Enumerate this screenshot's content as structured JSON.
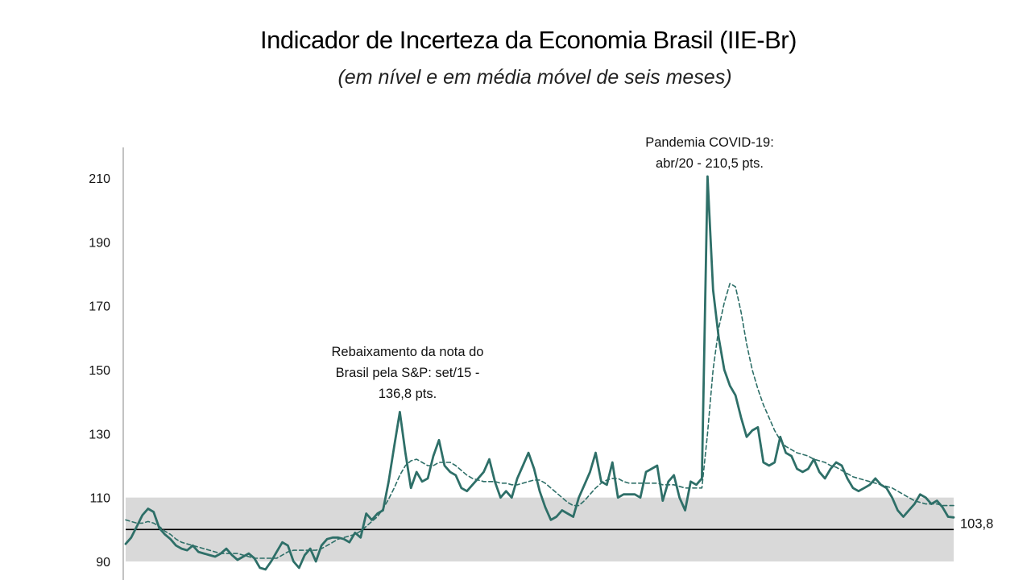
{
  "chart_data": {
    "type": "line",
    "title": "Indicador de Incerteza da Economia Brasil (IIE-Br)",
    "subtitle": "(em nível e em média móvel de seis meses)",
    "ylim": [
      86,
      222
    ],
    "yticks": [
      90,
      110,
      130,
      150,
      170,
      190,
      210
    ],
    "band": [
      90,
      110
    ],
    "reference_line": 100,
    "grid": false,
    "legend": "none",
    "colors": {
      "line": "#2e6f68",
      "moving_average": "#2e6f68",
      "band": "#d9d9d9",
      "reference": "#000000"
    },
    "series": [
      {
        "style": "solid",
        "values": [
          95.5,
          97.5,
          101,
          104.5,
          106.5,
          105.5,
          100.5,
          98.5,
          97,
          95,
          94,
          93.5,
          95,
          93,
          92.5,
          92,
          91.5,
          92.5,
          94,
          92,
          90.5,
          91.5,
          92.5,
          91,
          88,
          87.5,
          90,
          93,
          96,
          95,
          90,
          88,
          92,
          94,
          90,
          95,
          97,
          97.5,
          97.5,
          97,
          96,
          99,
          97.5,
          105,
          103,
          105,
          106,
          115,
          126,
          136.8,
          124,
          113,
          118,
          115,
          116,
          123,
          128,
          120,
          118,
          117,
          113,
          112,
          114,
          116,
          118,
          122,
          115,
          110,
          112,
          110,
          116,
          120,
          124,
          119,
          112,
          107,
          103,
          104,
          106,
          105,
          104,
          110,
          114,
          118,
          124,
          115,
          114,
          121,
          110,
          111,
          111,
          111,
          110,
          118,
          119,
          120,
          109,
          115,
          117,
          110,
          106,
          115,
          114,
          116,
          210.5,
          175,
          160,
          150,
          145,
          142,
          135,
          129,
          131,
          132,
          121,
          120,
          121,
          129,
          124,
          123,
          119,
          118,
          119,
          122,
          118,
          116,
          119,
          121,
          120,
          116,
          113,
          112,
          113,
          114,
          116,
          114,
          113,
          110,
          106,
          104,
          106,
          108,
          111,
          110,
          108,
          109,
          107,
          104,
          103.8
        ]
      },
      {
        "style": "dashed",
        "values": [
          103,
          102.5,
          102,
          102,
          102.5,
          102,
          101,
          99.5,
          98.5,
          97,
          96,
          95.5,
          95,
          94.5,
          94,
          93.5,
          93,
          92.5,
          92.5,
          92.5,
          92.5,
          92,
          91.5,
          91,
          91,
          91,
          91,
          91,
          92,
          93,
          93.5,
          93.5,
          93.5,
          93.5,
          93.5,
          94,
          95,
          96,
          97,
          97.5,
          98,
          98.5,
          99.5,
          101,
          102.5,
          104,
          106.5,
          109.5,
          113,
          117,
          120,
          121.5,
          122,
          121,
          120,
          120,
          121,
          121,
          121,
          120,
          118.5,
          117,
          116,
          115.5,
          115,
          115,
          115,
          114.5,
          114.5,
          114,
          114,
          114.5,
          115,
          115.5,
          115.5,
          114.5,
          113,
          111.5,
          110,
          108.5,
          107.5,
          107.5,
          109,
          111,
          113,
          114.5,
          115.5,
          116,
          116,
          115,
          114.5,
          114.5,
          114.5,
          114.5,
          114.5,
          114.5,
          114,
          114,
          114,
          113.5,
          113,
          113,
          113,
          113,
          130,
          150,
          163,
          171,
          177,
          176,
          168,
          158,
          150,
          144,
          139,
          135,
          131,
          128,
          126,
          125,
          124,
          123.5,
          123,
          122,
          121.5,
          121,
          120,
          119.5,
          118.5,
          117.5,
          116.5,
          116,
          115.5,
          115,
          114.5,
          114,
          113.5,
          113,
          112,
          111,
          110,
          109,
          108.5,
          108,
          108,
          108,
          107.5,
          107.5,
          107.5
        ]
      }
    ],
    "annotations": [
      {
        "index": 49,
        "lines": [
          "Rebaixamento da nota do",
          "Brasil pela S&P: set/15 -",
          "136,8 pts."
        ]
      },
      {
        "index": 104,
        "lines": [
          "Pandemia COVID-19:",
          "abr/20 - 210,5 pts."
        ]
      }
    ],
    "end_label": "103,8"
  }
}
